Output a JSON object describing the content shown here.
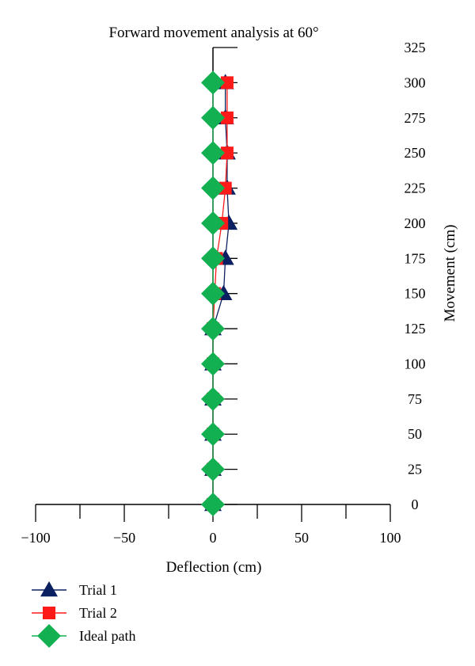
{
  "chart_data": {
    "type": "line",
    "title": "Forward movement analysis at 60°",
    "xlabel": "Deflection (cm)",
    "ylabel": "Movement (cm)",
    "xlim": [
      -100,
      100
    ],
    "ylim": [
      0,
      325
    ],
    "x_ticks": [
      -100,
      -50,
      0,
      50,
      100
    ],
    "x_tick_labels": [
      "−100",
      "−50",
      "0",
      "50",
      "100"
    ],
    "y_ticks": [
      0,
      25,
      50,
      75,
      100,
      125,
      150,
      175,
      200,
      225,
      250,
      275,
      300,
      325
    ],
    "y_tick_labels": [
      "0",
      "25",
      "50",
      "75",
      "100",
      "125",
      "150",
      "175",
      "200",
      "225",
      "250",
      "275",
      "300",
      "325"
    ],
    "legend_position": "bottom-left",
    "series": [
      {
        "name": "Trial 1",
        "marker": "triangle",
        "color": "#0b2060",
        "points": [
          [
            0,
            0
          ],
          [
            0,
            25
          ],
          [
            0,
            50
          ],
          [
            0,
            75
          ],
          [
            0,
            100
          ],
          [
            0,
            125
          ],
          [
            6,
            150
          ],
          [
            7,
            175
          ],
          [
            9,
            200
          ],
          [
            8,
            225
          ],
          [
            8,
            250
          ],
          [
            7,
            275
          ],
          [
            7,
            300
          ]
        ]
      },
      {
        "name": "Trial 2",
        "marker": "square",
        "color": "#ff1a1a",
        "points": [
          [
            0,
            0
          ],
          [
            0,
            25
          ],
          [
            0,
            50
          ],
          [
            0,
            75
          ],
          [
            0,
            100
          ],
          [
            0,
            125
          ],
          [
            1,
            150
          ],
          [
            2,
            175
          ],
          [
            5,
            200
          ],
          [
            7,
            225
          ],
          [
            8,
            250
          ],
          [
            8,
            275
          ],
          [
            8,
            300
          ]
        ]
      },
      {
        "name": "Ideal path",
        "marker": "diamond",
        "color": "#12b050",
        "points": [
          [
            0,
            0
          ],
          [
            0,
            25
          ],
          [
            0,
            50
          ],
          [
            0,
            75
          ],
          [
            0,
            100
          ],
          [
            0,
            125
          ],
          [
            0,
            150
          ],
          [
            0,
            175
          ],
          [
            0,
            200
          ],
          [
            0,
            225
          ],
          [
            0,
            250
          ],
          [
            0,
            275
          ],
          [
            0,
            300
          ]
        ]
      }
    ]
  }
}
